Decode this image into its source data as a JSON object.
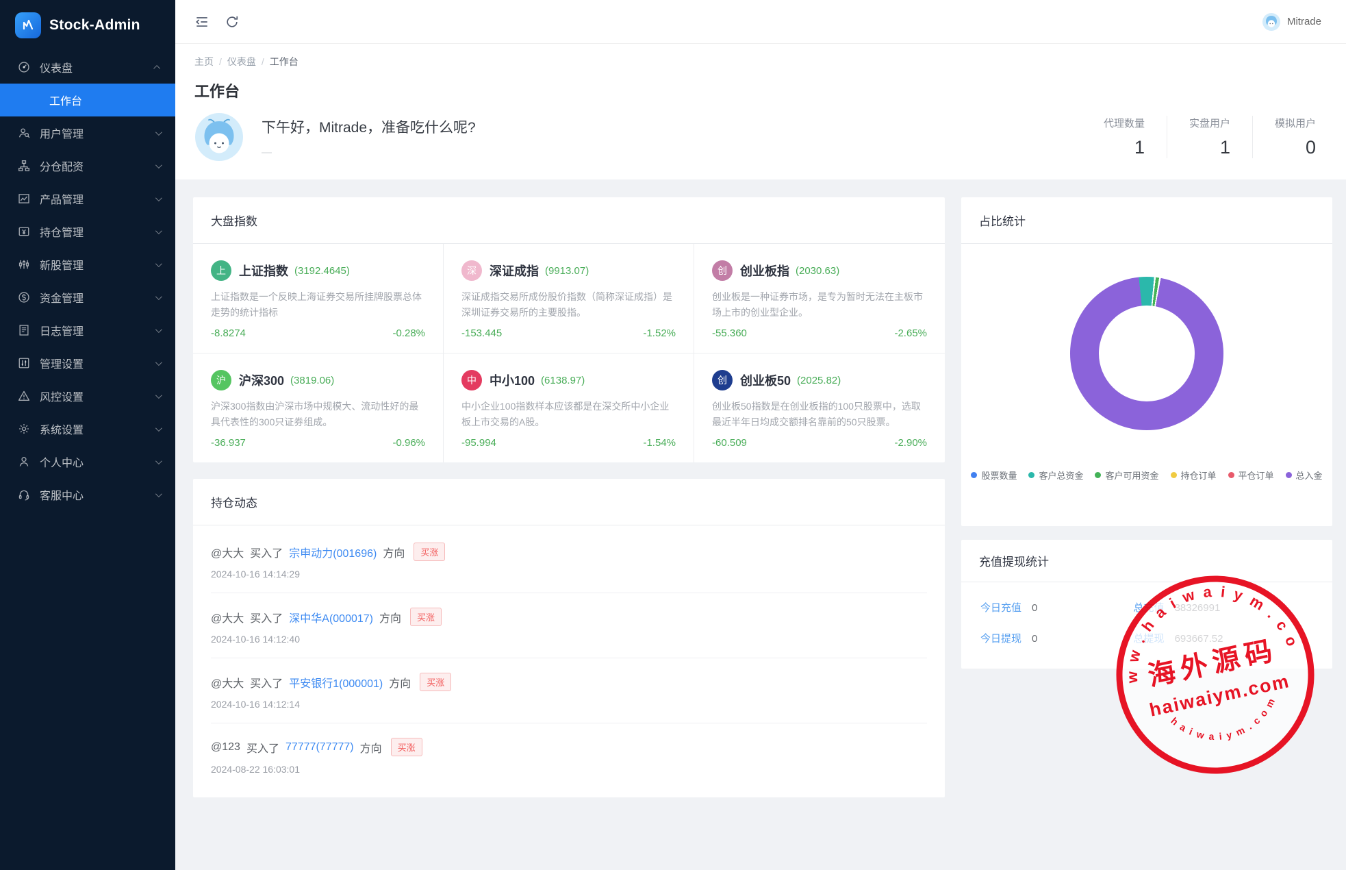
{
  "app": {
    "name": "Stock-Admin",
    "user": "Mitrade"
  },
  "topbar": {
    "icons": [
      "collapse-sidebar-icon",
      "refresh-icon"
    ]
  },
  "sidebar": {
    "items": [
      {
        "label": "仪表盘",
        "icon": "gauge-icon",
        "expanded": true,
        "children": [
          {
            "label": "工作台",
            "active": true
          }
        ]
      },
      {
        "label": "用户管理",
        "icon": "user-magnifier-icon"
      },
      {
        "label": "分仓配资",
        "icon": "org-chart-icon"
      },
      {
        "label": "产品管理",
        "icon": "chart-image-icon"
      },
      {
        "label": "持仓管理",
        "icon": "wallet-yen-icon"
      },
      {
        "label": "新股管理",
        "icon": "candlestick-icon"
      },
      {
        "label": "资金管理",
        "icon": "money-circle-icon"
      },
      {
        "label": "日志管理",
        "icon": "log-document-icon"
      },
      {
        "label": "管理设置",
        "icon": "admin-panel-icon"
      },
      {
        "label": "风控设置",
        "icon": "risk-warning-icon"
      },
      {
        "label": "系统设置",
        "icon": "gear-icon"
      },
      {
        "label": "个人中心",
        "icon": "person-icon"
      },
      {
        "label": "客服中心",
        "icon": "headset-icon"
      }
    ]
  },
  "breadcrumb": [
    "主页",
    "仪表盘",
    "工作台"
  ],
  "page": {
    "title": "工作台",
    "greeting": "下午好，Mitrade，准备吃什么呢?",
    "greeting_sub": "—"
  },
  "summary_stats": [
    {
      "label": "代理数量",
      "value": "1"
    },
    {
      "label": "实盘用户",
      "value": "1"
    },
    {
      "label": "模拟用户",
      "value": "0"
    }
  ],
  "market_indices": {
    "section_title": "大盘指数",
    "items": [
      {
        "badge": "上",
        "badge_color": "#43b485",
        "name": "上证指数",
        "value": "(3192.4645)",
        "desc": "上证指数是一个反映上海证券交易所挂牌股票总体走势的统计指标",
        "change": "-8.8274",
        "pct": "-0.28%"
      },
      {
        "badge": "深",
        "badge_color": "#f0b8cd",
        "name": "深证成指",
        "value": "(9913.07)",
        "desc": "深证成指交易所成份股价指数（简称深证成指）是深圳证券交易所的主要股指。",
        "change": "-153.445",
        "pct": "-1.52%"
      },
      {
        "badge": "创",
        "badge_color": "#c27da6",
        "name": "创业板指",
        "value": "(2030.63)",
        "desc": "创业板是一种证券市场，是专为暂时无法在主板市场上市的创业型企业。",
        "change": "-55.360",
        "pct": "-2.65%"
      },
      {
        "badge": "沪",
        "badge_color": "#55c561",
        "name": "沪深300",
        "value": "(3819.06)",
        "desc": "沪深300指数由沪深市场中规模大、流动性好的最具代表性的300只证券组成。",
        "change": "-36.937",
        "pct": "-0.96%"
      },
      {
        "badge": "中",
        "badge_color": "#e43b60",
        "name": "中小100",
        "value": "(6138.97)",
        "desc": "中小企业100指数样本应该都是在深交所中小企业板上市交易的A股。",
        "change": "-95.994",
        "pct": "-1.54%"
      },
      {
        "badge": "创",
        "badge_color": "#1e3d8f",
        "name": "创业板50",
        "value": "(2025.82)",
        "desc": "创业板50指数是在创业板指的100只股票中，选取最近半年日均成交额排名靠前的50只股票。",
        "change": "-60.509",
        "pct": "-2.90%"
      }
    ],
    "value_color": "#49ad58"
  },
  "positions_feed": {
    "section_title": "持仓动态",
    "items": [
      {
        "user": "@大大",
        "action": "买入了",
        "stock": "宗申动力(001696)",
        "direction_label": "方向",
        "direction": "买涨",
        "time": "2024-10-16 14:14:29"
      },
      {
        "user": "@大大",
        "action": "买入了",
        "stock": "深中华A(000017)",
        "direction_label": "方向",
        "direction": "买涨",
        "time": "2024-10-16 14:12:40"
      },
      {
        "user": "@大大",
        "action": "买入了",
        "stock": "平安银行1(000001)",
        "direction_label": "方向",
        "direction": "买涨",
        "time": "2024-10-16 14:12:14"
      },
      {
        "user": "@123",
        "action": "买入了",
        "stock": "77777(77777)",
        "direction_label": "方向",
        "direction": "买涨",
        "time": "2024-08-22 16:03:01"
      }
    ],
    "badge_color": "#f25f5f",
    "link_color": "#3d8af2"
  },
  "ratio_stats": {
    "section_title": "占比统计"
  },
  "chart_data": {
    "type": "pie",
    "title": "占比统计",
    "donut": true,
    "labels": [
      "股票数量",
      "客户总资金",
      "客户可用资金",
      "持仓订单",
      "平仓订单",
      "总入金"
    ],
    "values_pct": [
      0,
      3.2,
      0.7,
      0,
      0,
      96.1
    ],
    "colors": [
      "#4180f0",
      "#2bb8ab",
      "#43b257",
      "#f0cb42",
      "#e85a6b",
      "#8b63da"
    ],
    "legend_position": "bottom",
    "start_angle_deg": -6
  },
  "recharge_stats": {
    "section_title": "充值提现统计",
    "rows": [
      {
        "label_left": "今日充值",
        "value_left": "0",
        "label_right": "总充值",
        "value_right": "38326991"
      },
      {
        "label_left": "今日提现",
        "value_left": "0",
        "label_right": "总提现",
        "value_right": "693667.52"
      }
    ]
  },
  "watermark": {
    "arc_top": "w w w . h a i w a i y m . c o m",
    "line1": "海外源码",
    "line2": "haiwaiym.com",
    "arc_bottom": "h a i w a i y m . c o m",
    "color": "#e60113"
  }
}
